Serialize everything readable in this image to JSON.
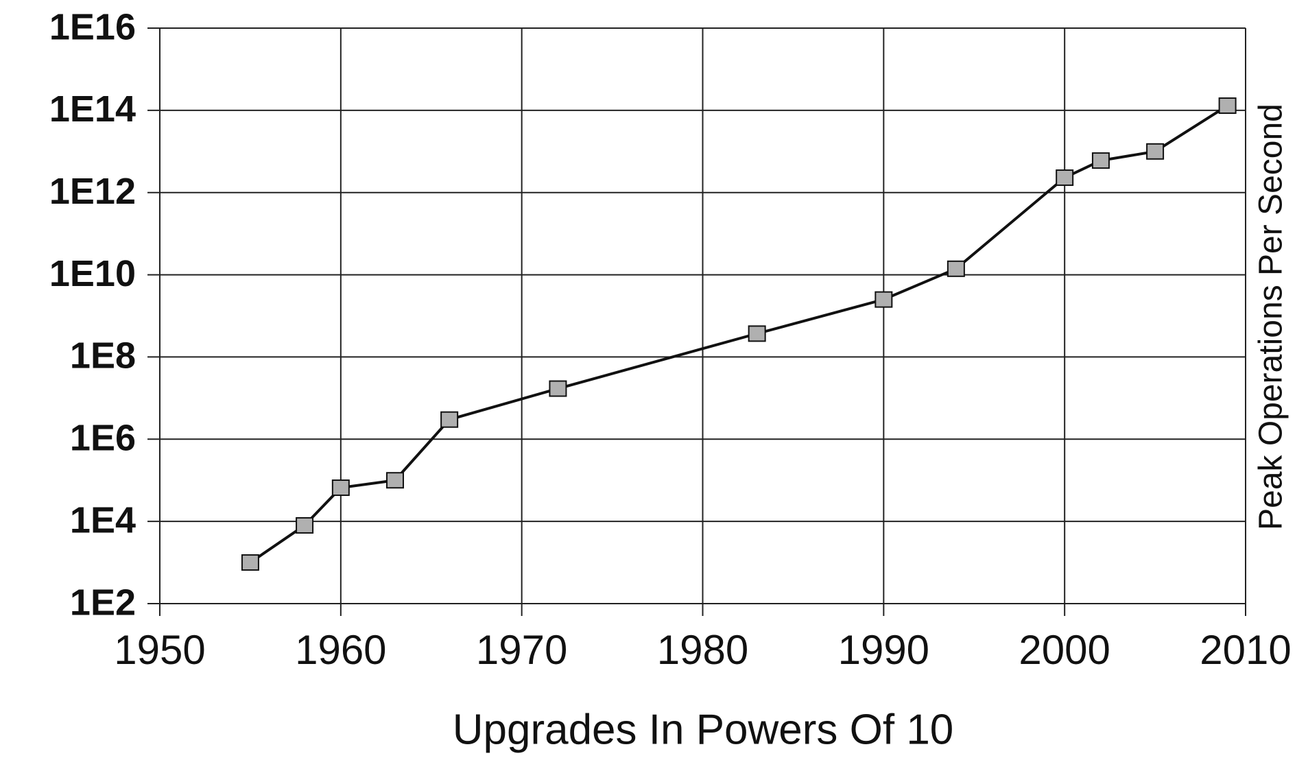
{
  "chart_data": {
    "type": "line",
    "x_label": "Upgrades In Powers Of 10",
    "y_label": "Peak Operations Per Second",
    "x": [
      1955,
      1958,
      1960,
      1963,
      1966,
      1972,
      1983,
      1990,
      1994,
      2000,
      2002,
      2005,
      2009
    ],
    "series": [
      {
        "name": "Peak Operations Per Second",
        "color": "#111111",
        "marker_color": "#b0b0b0",
        "values": [
          1000,
          8000,
          66000,
          100000,
          3000000,
          17000000,
          370000000,
          2500000000,
          14000000000,
          2300000000000,
          6000000000000,
          10000000000000,
          130000000000000
        ]
      }
    ],
    "xlim": [
      1950,
      2010
    ],
    "xticks": [
      1950,
      1960,
      1970,
      1980,
      1990,
      2000,
      2010
    ],
    "ylim": [
      100,
      10000000000000000
    ],
    "log_y": true,
    "yticks": [
      {
        "value": 100,
        "label": "1E2"
      },
      {
        "value": 10000,
        "label": "1E4"
      },
      {
        "value": 1000000,
        "label": "1E6"
      },
      {
        "value": 100000000,
        "label": "1E8"
      },
      {
        "value": 10000000000,
        "label": "1E10"
      },
      {
        "value": 1000000000000,
        "label": "1E12"
      },
      {
        "value": 100000000000000,
        "label": "1E14"
      },
      {
        "value": 10000000000000000,
        "label": "1E16"
      }
    ],
    "grid": true
  }
}
